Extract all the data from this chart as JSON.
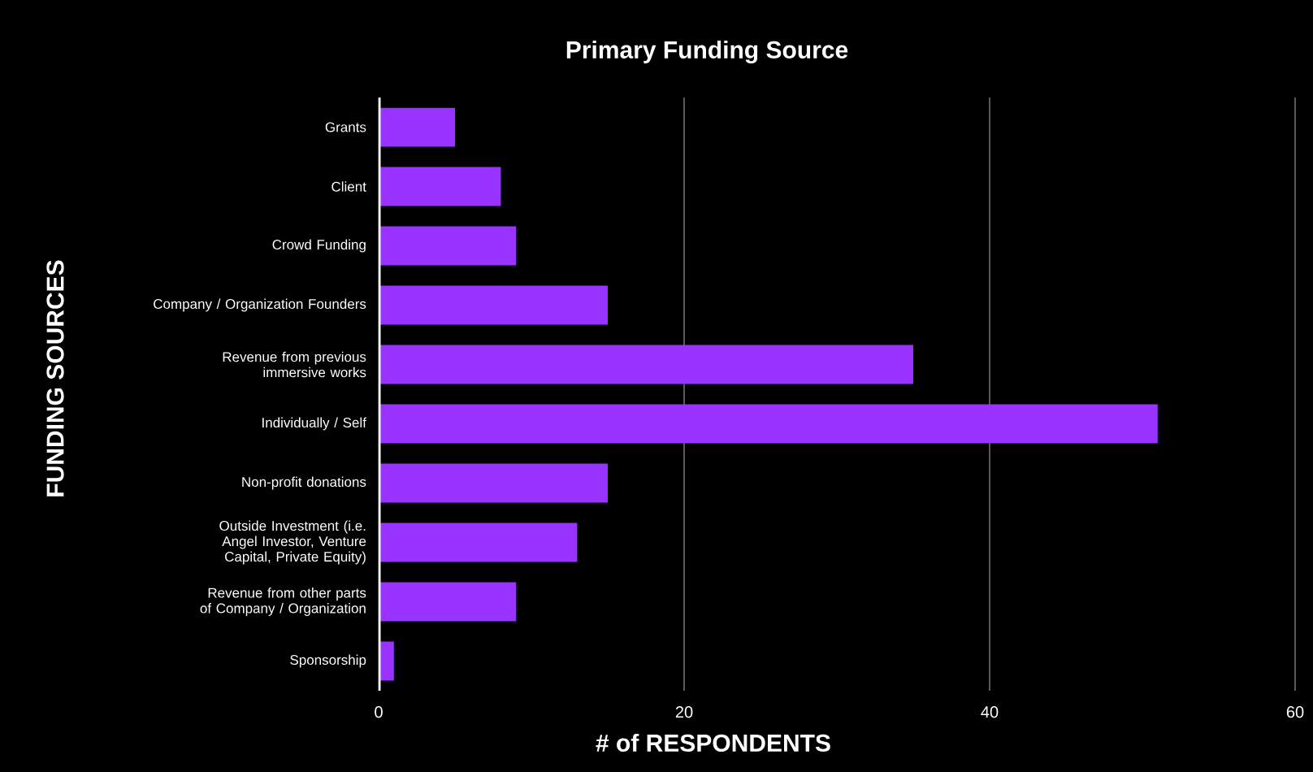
{
  "chart_data": {
    "type": "bar",
    "orientation": "horizontal",
    "title": "Primary Funding Source",
    "xlabel": "# of RESPONDENTS",
    "ylabel": "FUNDING SOURCES",
    "categories": [
      "Grants",
      "Client",
      "Crowd Funding",
      "Company / Organization Founders",
      "Revenue from previous immersive works",
      "Individually / Self",
      "Non-profit donations",
      "Outside Investment (i.e. Angel Investor, Venture Capital, Private Equity)",
      "Revenue from other parts of Company / Organization",
      "Sponsorship"
    ],
    "values": [
      5,
      8,
      9,
      15,
      35,
      51,
      15,
      13,
      9,
      1
    ],
    "color": "#9933ff",
    "xlim": [
      0,
      60
    ],
    "xticks": [
      0,
      20,
      40,
      60
    ],
    "grid": "x"
  }
}
